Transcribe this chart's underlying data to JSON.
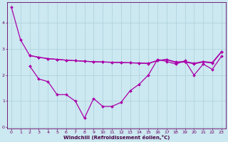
{
  "xlabel": "Windchill (Refroidissement éolien,°C)",
  "line1_x": [
    0,
    1,
    2,
    3,
    4,
    5,
    6,
    7,
    8,
    9,
    10,
    11,
    12,
    13,
    14,
    15,
    16,
    17,
    18,
    19,
    20,
    21,
    22,
    23
  ],
  "line1_y": [
    4.6,
    3.35,
    2.75,
    2.68,
    2.63,
    2.6,
    2.57,
    2.55,
    2.53,
    2.51,
    2.5,
    2.49,
    2.48,
    2.47,
    2.46,
    2.45,
    2.56,
    2.6,
    2.5,
    2.52,
    2.45,
    2.52,
    2.48,
    2.9
  ],
  "line2_x": [
    2,
    3,
    4,
    5,
    6,
    7,
    8,
    9,
    10,
    11,
    12,
    13,
    14,
    15,
    16,
    17,
    18,
    19,
    20,
    21,
    22,
    23
  ],
  "line2_y": [
    2.75,
    2.68,
    2.63,
    2.6,
    2.57,
    2.55,
    2.53,
    2.51,
    2.5,
    2.49,
    2.48,
    2.47,
    2.46,
    2.44,
    2.55,
    2.59,
    2.48,
    2.5,
    2.43,
    2.5,
    2.46,
    2.88
  ],
  "line3_x": [
    2,
    3,
    4,
    5,
    6,
    7,
    8,
    9,
    10,
    11,
    12,
    13,
    14,
    15,
    16,
    17,
    18,
    19,
    20,
    21,
    22,
    23
  ],
  "line3_y": [
    2.35,
    1.85,
    1.75,
    1.25,
    1.25,
    1.0,
    0.35,
    1.1,
    0.8,
    0.8,
    0.95,
    1.4,
    1.65,
    2.0,
    2.6,
    2.52,
    2.42,
    2.55,
    2.0,
    2.42,
    2.22,
    2.72
  ],
  "line_color": "#aa00aa",
  "bg_color": "#cce8f0",
  "grid_color": "#aad0de",
  "tick_color": "#660066",
  "label_color": "#440044",
  "ylim": [
    -0.05,
    4.8
  ],
  "xlim": [
    -0.5,
    23.5
  ],
  "yticks": [
    0,
    1,
    2,
    3,
    4
  ],
  "xticks": [
    0,
    1,
    2,
    3,
    4,
    5,
    6,
    7,
    8,
    9,
    10,
    11,
    12,
    13,
    14,
    15,
    16,
    17,
    18,
    19,
    20,
    21,
    22,
    23
  ]
}
